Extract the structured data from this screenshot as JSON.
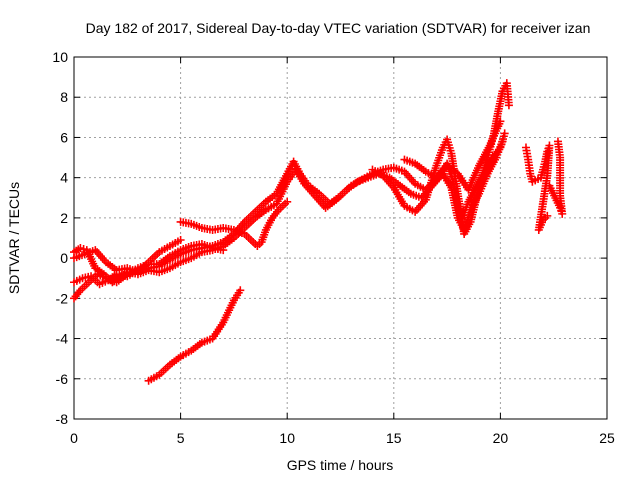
{
  "chart_data": {
    "type": "scatter",
    "title": "Day 182 of 2017, Sidereal Day-to-day VTEC variation (SDTVAR) for receiver izan",
    "xlabel": "GPS time / hours",
    "ylabel": "SDTVAR / TECUs",
    "xlim": [
      0,
      25
    ],
    "ylim": [
      -8,
      10
    ],
    "xticks": [
      "0",
      "5",
      "10",
      "15",
      "20",
      "25"
    ],
    "yticks": [
      "-8",
      "-6",
      "-4",
      "-2",
      "0",
      "2",
      "4",
      "6",
      "8",
      "10"
    ],
    "grid": true,
    "marker": "plus",
    "color": "#ff0000",
    "series": [
      {
        "values_xy": [
          [
            0.0,
            -1.2
          ],
          [
            0.4,
            -1.0
          ],
          [
            0.8,
            -0.9
          ],
          [
            1.2,
            -1.3
          ],
          [
            1.6,
            -1.1
          ],
          [
            2.0,
            -0.8
          ],
          [
            2.5,
            -0.9
          ],
          [
            3.0,
            -0.6
          ],
          [
            3.5,
            -0.5
          ],
          [
            4.0,
            -0.4
          ],
          [
            4.5,
            -0.1
          ],
          [
            5.0,
            0.2
          ],
          [
            5.5,
            0.4
          ],
          [
            6.0,
            0.5
          ],
          [
            6.5,
            0.6
          ],
          [
            7.0,
            0.8
          ],
          [
            7.5,
            1.2
          ],
          [
            8.0,
            1.8
          ],
          [
            8.5,
            2.3
          ],
          [
            9.0,
            2.8
          ],
          [
            9.5,
            3.2
          ],
          [
            10.0,
            4.2
          ],
          [
            10.3,
            4.8
          ],
          [
            10.6,
            4.2
          ],
          [
            11.0,
            3.6
          ],
          [
            11.5,
            3.2
          ],
          [
            12.0,
            2.7
          ],
          [
            12.5,
            3.1
          ],
          [
            13.0,
            3.6
          ],
          [
            13.5,
            3.9
          ],
          [
            14.0,
            4.2
          ],
          [
            14.5,
            4.4
          ],
          [
            15.0,
            4.5
          ],
          [
            15.5,
            4.3
          ],
          [
            16.0,
            3.7
          ],
          [
            16.5,
            3.4
          ],
          [
            17.0,
            3.9
          ],
          [
            17.5,
            4.7
          ],
          [
            17.8,
            3.8
          ],
          [
            18.0,
            2.5
          ],
          [
            18.2,
            2.0
          ],
          [
            18.5,
            2.8
          ],
          [
            19.0,
            3.8
          ],
          [
            19.5,
            4.8
          ],
          [
            20.0,
            5.5
          ],
          [
            20.2,
            6.2
          ]
        ]
      },
      {
        "values_xy": [
          [
            0.0,
            0.3
          ],
          [
            0.3,
            0.5
          ],
          [
            0.6,
            0.4
          ],
          [
            1.0,
            -0.5
          ],
          [
            1.4,
            -0.8
          ],
          [
            1.8,
            -1.2
          ],
          [
            2.2,
            -0.9
          ],
          [
            2.6,
            -0.7
          ],
          [
            3.0,
            -0.8
          ],
          [
            3.5,
            -0.6
          ],
          [
            4.0,
            -0.7
          ],
          [
            4.5,
            -0.5
          ],
          [
            5.0,
            -0.2
          ],
          [
            5.5,
            0.0
          ],
          [
            6.0,
            0.3
          ],
          [
            6.5,
            0.4
          ],
          [
            7.0,
            0.6
          ],
          [
            7.5,
            1.0
          ],
          [
            8.0,
            1.5
          ],
          [
            8.5,
            2.0
          ],
          [
            9.0,
            2.4
          ],
          [
            9.5,
            2.7
          ],
          [
            10.0,
            3.8
          ],
          [
            10.4,
            4.4
          ],
          [
            10.8,
            3.7
          ],
          [
            11.3,
            3.1
          ],
          [
            11.8,
            2.5
          ],
          [
            12.3,
            2.9
          ],
          [
            12.8,
            3.4
          ],
          [
            13.3,
            3.8
          ],
          [
            13.8,
            4.0
          ],
          [
            14.3,
            4.2
          ],
          [
            14.8,
            4.0
          ],
          [
            15.3,
            3.6
          ],
          [
            15.8,
            3.2
          ],
          [
            16.3,
            3.0
          ],
          [
            16.8,
            3.6
          ],
          [
            17.3,
            4.2
          ],
          [
            17.7,
            3.5
          ],
          [
            18.0,
            2.0
          ],
          [
            18.3,
            1.4
          ],
          [
            18.6,
            2.4
          ],
          [
            19.0,
            3.2
          ],
          [
            19.4,
            4.2
          ],
          [
            19.8,
            5.0
          ],
          [
            20.1,
            5.8
          ]
        ]
      },
      {
        "values_xy": [
          [
            0.0,
            -2.0
          ],
          [
            0.3,
            -1.6
          ],
          [
            0.7,
            -1.2
          ],
          [
            1.1,
            -0.8
          ],
          [
            1.5,
            -1.0
          ],
          [
            2.0,
            -1.2
          ],
          [
            2.5,
            -0.8
          ],
          [
            3.0,
            -0.5
          ],
          [
            3.5,
            -0.3
          ],
          [
            4.0,
            -0.3
          ],
          [
            4.5,
            0.1
          ],
          [
            5.0,
            0.4
          ],
          [
            5.5,
            0.6
          ],
          [
            6.0,
            0.7
          ],
          [
            6.5,
            0.5
          ],
          [
            7.0,
            0.4
          ]
        ]
      },
      {
        "values_xy": [
          [
            0.0,
            0.0
          ],
          [
            0.5,
            0.2
          ],
          [
            1.0,
            0.4
          ],
          [
            1.5,
            -0.2
          ],
          [
            2.0,
            -0.6
          ],
          [
            2.5,
            -0.5
          ],
          [
            3.0,
            -0.7
          ],
          [
            3.5,
            -0.2
          ],
          [
            4.0,
            0.3
          ],
          [
            4.5,
            0.6
          ],
          [
            5.0,
            0.9
          ]
        ]
      },
      {
        "values_xy": [
          [
            5.0,
            1.8
          ],
          [
            5.5,
            1.7
          ],
          [
            6.0,
            1.5
          ],
          [
            6.5,
            1.4
          ],
          [
            7.0,
            1.5
          ],
          [
            7.5,
            1.4
          ],
          [
            8.0,
            1.2
          ],
          [
            8.3,
            0.9
          ],
          [
            8.6,
            0.6
          ],
          [
            8.8,
            0.8
          ],
          [
            9.0,
            1.4
          ],
          [
            9.3,
            2.0
          ],
          [
            9.6,
            2.4
          ],
          [
            10.0,
            2.8
          ]
        ]
      },
      {
        "values_xy": [
          [
            3.5,
            -6.1
          ],
          [
            4.0,
            -5.8
          ],
          [
            4.5,
            -5.3
          ],
          [
            5.0,
            -4.9
          ],
          [
            5.5,
            -4.6
          ],
          [
            6.0,
            -4.2
          ],
          [
            6.5,
            -4.0
          ],
          [
            7.0,
            -3.2
          ],
          [
            7.5,
            -2.1
          ],
          [
            7.8,
            -1.6
          ]
        ]
      },
      {
        "values_xy": [
          [
            14.0,
            4.4
          ],
          [
            14.5,
            4.1
          ],
          [
            15.0,
            3.5
          ],
          [
            15.5,
            2.6
          ],
          [
            16.0,
            2.3
          ],
          [
            16.5,
            2.9
          ],
          [
            17.0,
            4.6
          ],
          [
            17.3,
            5.5
          ],
          [
            17.5,
            5.9
          ],
          [
            17.7,
            5.2
          ],
          [
            18.0,
            3.2
          ],
          [
            18.3,
            1.2
          ],
          [
            18.6,
            1.8
          ],
          [
            19.0,
            3.5
          ],
          [
            19.4,
            5.0
          ],
          [
            19.7,
            6.2
          ],
          [
            19.9,
            7.3
          ],
          [
            20.1,
            8.3
          ],
          [
            20.3,
            8.7
          ],
          [
            20.4,
            7.6
          ]
        ]
      },
      {
        "values_xy": [
          [
            15.5,
            4.9
          ],
          [
            16.0,
            4.7
          ],
          [
            16.5,
            4.3
          ],
          [
            17.0,
            4.0
          ],
          [
            17.5,
            4.6
          ],
          [
            18.0,
            4.2
          ],
          [
            18.5,
            3.4
          ],
          [
            19.0,
            4.6
          ],
          [
            19.5,
            5.6
          ],
          [
            20.0,
            6.8
          ]
        ]
      },
      {
        "values_xy": [
          [
            21.2,
            5.5
          ],
          [
            21.3,
            4.9
          ],
          [
            21.4,
            4.2
          ],
          [
            21.5,
            3.8
          ],
          [
            21.9,
            4.0
          ],
          [
            22.1,
            4.8
          ],
          [
            22.2,
            5.3
          ],
          [
            22.3,
            5.6
          ],
          [
            22.2,
            4.1
          ],
          [
            21.8,
            1.4
          ],
          [
            22.0,
            1.9
          ],
          [
            22.2,
            2.1
          ],
          [
            22.7,
            5.8
          ],
          [
            22.8,
            5.0
          ],
          [
            22.8,
            3.1
          ],
          [
            22.9,
            2.2
          ],
          [
            22.8,
            2.5
          ],
          [
            22.3,
            3.6
          ]
        ]
      }
    ]
  }
}
